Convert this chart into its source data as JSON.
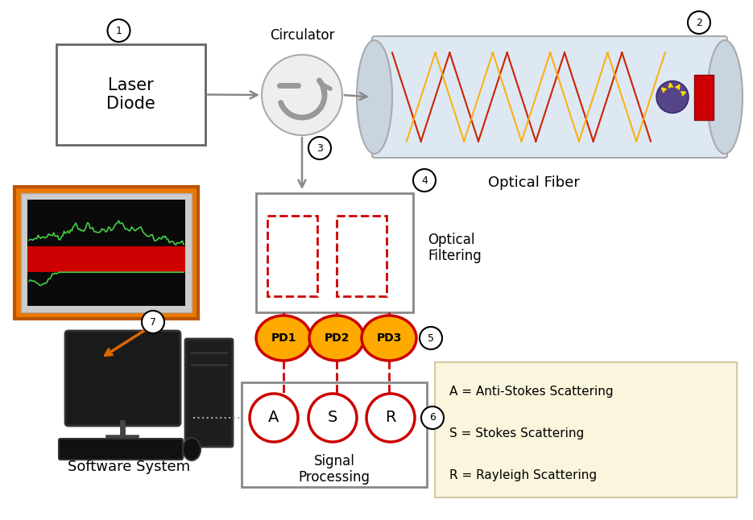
{
  "bg_color": "#ffffff",
  "laser_label": "Laser\nDiode",
  "laser_num": "1",
  "circulator_label": "Circulator",
  "circulator_num": "3",
  "fiber_label": "Optical Fiber",
  "fiber_num": "2",
  "filter_label": "Optical\nFiltering",
  "filter_num": "4",
  "pd_labels": [
    "PD1",
    "PD2",
    "PD3"
  ],
  "pd_num": "5",
  "signal_letters": [
    "A",
    "S",
    "R"
  ],
  "signal_num": "6",
  "signal_proc_label": "Signal\nProcessing",
  "software_label": "Software System",
  "software_num": "7",
  "legend_lines": [
    "A = Anti-Stokes Scattering",
    "S = Stokes Scattering",
    "R = Rayleigh Scattering"
  ],
  "legend_bg": "#faf5dc",
  "legend_border": "#d4c8a0",
  "gray_arrow": "#888888",
  "red_color": "#cc0000",
  "pd_fill": "#ffaa00",
  "orange_line": "#dd6600",
  "fiber_bg": "#dde8f2",
  "fiber_end": "#c8d4e0"
}
